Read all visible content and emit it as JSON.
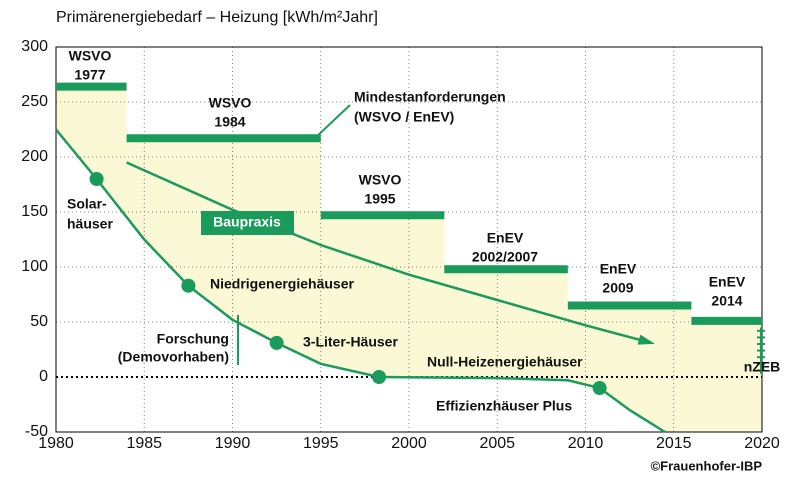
{
  "chart_data": {
    "type": "line",
    "title": "Primärenergiebedarf – Heizung [kWh/m²Jahr]",
    "xlim": [
      1980,
      2020
    ],
    "xticks": [
      1980,
      1985,
      1990,
      1995,
      2000,
      2005,
      2010,
      2015,
      2020
    ],
    "ylim": [
      -50,
      300
    ],
    "yticks": [
      -50,
      0,
      50,
      100,
      150,
      200,
      250,
      300
    ],
    "grid": true,
    "color": "#1a9b5c",
    "area_color": "#fbf8d6",
    "regulations": {
      "name": [
        "Mindestanforderungen",
        "(WSVO / EnEV)"
      ],
      "items": [
        {
          "label": [
            "WSVO",
            "1977"
          ],
          "start": 1980,
          "end": 1984,
          "value": 264
        },
        {
          "label": [
            "WSVO",
            "1984"
          ],
          "start": 1984,
          "end": 1995,
          "value": 217
        },
        {
          "label": [
            "WSVO",
            "1995"
          ],
          "start": 1995,
          "end": 2002,
          "value": 147
        },
        {
          "label": [
            "EnEV",
            "2002/2007"
          ],
          "start": 2002,
          "end": 2009,
          "value": 98
        },
        {
          "label": [
            "EnEV",
            "2009"
          ],
          "start": 2009,
          "end": 2016,
          "value": 65
        },
        {
          "label": [
            "EnEV",
            "2014"
          ],
          "start": 2016,
          "end": 2020,
          "value": 51
        }
      ]
    },
    "research": {
      "x": [
        1980,
        1982.3,
        1985,
        1987.5,
        1990,
        1992.5,
        1995,
        1998.3,
        2005,
        2009,
        2010.8,
        2012.5,
        2014.5
      ],
      "values": [
        225,
        180,
        125,
        83,
        52,
        31,
        12,
        0,
        -1,
        -3,
        -10,
        -30,
        -50
      ]
    },
    "milestones": {
      "x": [
        1982.3,
        1987.5,
        1992.5,
        1998.3,
        2010.8
      ],
      "values": [
        180,
        83,
        31,
        0,
        -10
      ],
      "labels": [
        [
          "Solar-",
          "häuser"
        ],
        [
          "Niedrigenergiehäuser"
        ],
        [
          "3-Liter-Häuser"
        ],
        [
          "Null-Heizenergiehäuser"
        ],
        [
          "Effizienzhäuser Plus"
        ]
      ]
    },
    "practice": {
      "name": "Baupraxis",
      "x": [
        1984,
        1990,
        1995,
        2000,
        2005,
        2010,
        2013.5
      ],
      "values": [
        195,
        152,
        120,
        93,
        70,
        47,
        32
      ]
    },
    "annotations": [
      [
        "Forschung",
        "(Demovorhaben)"
      ],
      [
        "nZEB"
      ],
      [
        "©Frauenhofer-IBP"
      ]
    ]
  }
}
